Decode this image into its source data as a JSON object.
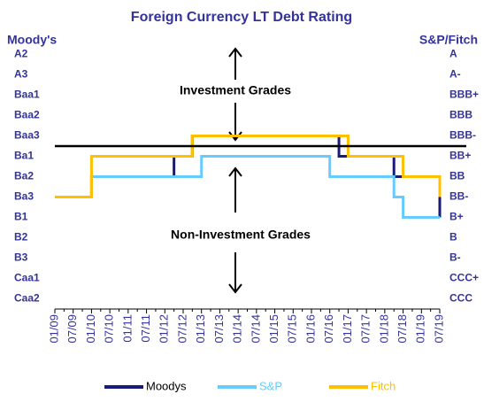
{
  "chart_data": {
    "type": "step-line",
    "title": "Foreign Currency LT Debt Rating",
    "y_axis_label": "Moody's",
    "y2_axis_label": "S&P/Fitch",
    "annotations": [
      "Investment Grades",
      "Non-Investment Grades"
    ],
    "threshold": 8.5,
    "threshold_color": "#000000",
    "categories": [
      "01/09",
      null,
      "07/09",
      null,
      "01/10",
      null,
      "07/10",
      null,
      "01/11",
      null,
      "07/11",
      null,
      "01/12",
      null,
      "07/12",
      null,
      "01/13",
      null,
      "07/13",
      null,
      "01/14",
      null,
      "07/14",
      null,
      "01/15",
      null,
      "07/15",
      null,
      "01/16",
      null,
      "07/16",
      null,
      "01/17",
      null,
      "07/17",
      null,
      "01/18",
      null,
      "07/18",
      null,
      "01/19",
      null,
      "07/19"
    ],
    "series": [
      {
        "name": "Moodys",
        "color": "#1a1a7a",
        "values": [
          6,
          6,
          6,
          6,
          7,
          7,
          7,
          7,
          7,
          7,
          7,
          7,
          7,
          8,
          8,
          9,
          9,
          9,
          9,
          9,
          9,
          9,
          9,
          9,
          9,
          9,
          9,
          9,
          9,
          9,
          9,
          8,
          8,
          8,
          8,
          8,
          8,
          7,
          7,
          7,
          7,
          7,
          5
        ]
      },
      {
        "name": "S&P",
        "color": "#66ccff",
        "values": [
          6,
          6,
          6,
          6,
          7,
          7,
          7,
          7,
          7,
          7,
          7,
          7,
          7,
          7,
          7,
          7,
          8,
          8,
          8,
          8,
          8,
          8,
          8,
          8,
          8,
          8,
          8,
          8,
          8,
          8,
          7,
          7,
          7,
          7,
          7,
          7,
          7,
          6,
          5,
          5,
          5,
          5,
          5
        ]
      },
      {
        "name": "Fitch",
        "color": "#ffc000",
        "values": [
          6,
          6,
          6,
          6,
          8,
          8,
          8,
          8,
          8,
          8,
          8,
          8,
          8,
          8,
          8,
          9,
          9,
          9,
          9,
          9,
          9,
          9,
          9,
          9,
          9,
          9,
          9,
          9,
          9,
          9,
          9,
          9,
          8,
          8,
          8,
          8,
          8,
          8,
          7,
          7,
          7,
          7,
          6
        ]
      }
    ],
    "ylim": [
      0.5,
      13.5
    ],
    "yticks": [
      {
        "value": 13,
        "label": "A2"
      },
      {
        "value": 12,
        "label": "A3"
      },
      {
        "value": 11,
        "label": "Baa1"
      },
      {
        "value": 10,
        "label": "Baa2"
      },
      {
        "value": 9,
        "label": "Baa3"
      },
      {
        "value": 8,
        "label": "Ba1"
      },
      {
        "value": 7,
        "label": "Ba2"
      },
      {
        "value": 6,
        "label": "Ba3"
      },
      {
        "value": 5,
        "label": "B1"
      },
      {
        "value": 4,
        "label": "B2"
      },
      {
        "value": 3,
        "label": "B3"
      },
      {
        "value": 2,
        "label": "Caa1"
      },
      {
        "value": 1,
        "label": "Caa2"
      }
    ],
    "y2lim": [
      0.5,
      13.5
    ],
    "y2ticks": [
      {
        "value": 13,
        "label": "A"
      },
      {
        "value": 12,
        "label": "A-"
      },
      {
        "value": 11,
        "label": "BBB+"
      },
      {
        "value": 10,
        "label": "BBB"
      },
      {
        "value": 9,
        "label": "BBB-"
      },
      {
        "value": 8,
        "label": "BB+"
      },
      {
        "value": 7,
        "label": "BB"
      },
      {
        "value": 6,
        "label": "BB-"
      },
      {
        "value": 5,
        "label": "B+"
      },
      {
        "value": 4,
        "label": "B"
      },
      {
        "value": 3,
        "label": "B-"
      },
      {
        "value": 2,
        "label": "CCC+"
      },
      {
        "value": 1,
        "label": "CCC"
      }
    ],
    "grid": false
  }
}
